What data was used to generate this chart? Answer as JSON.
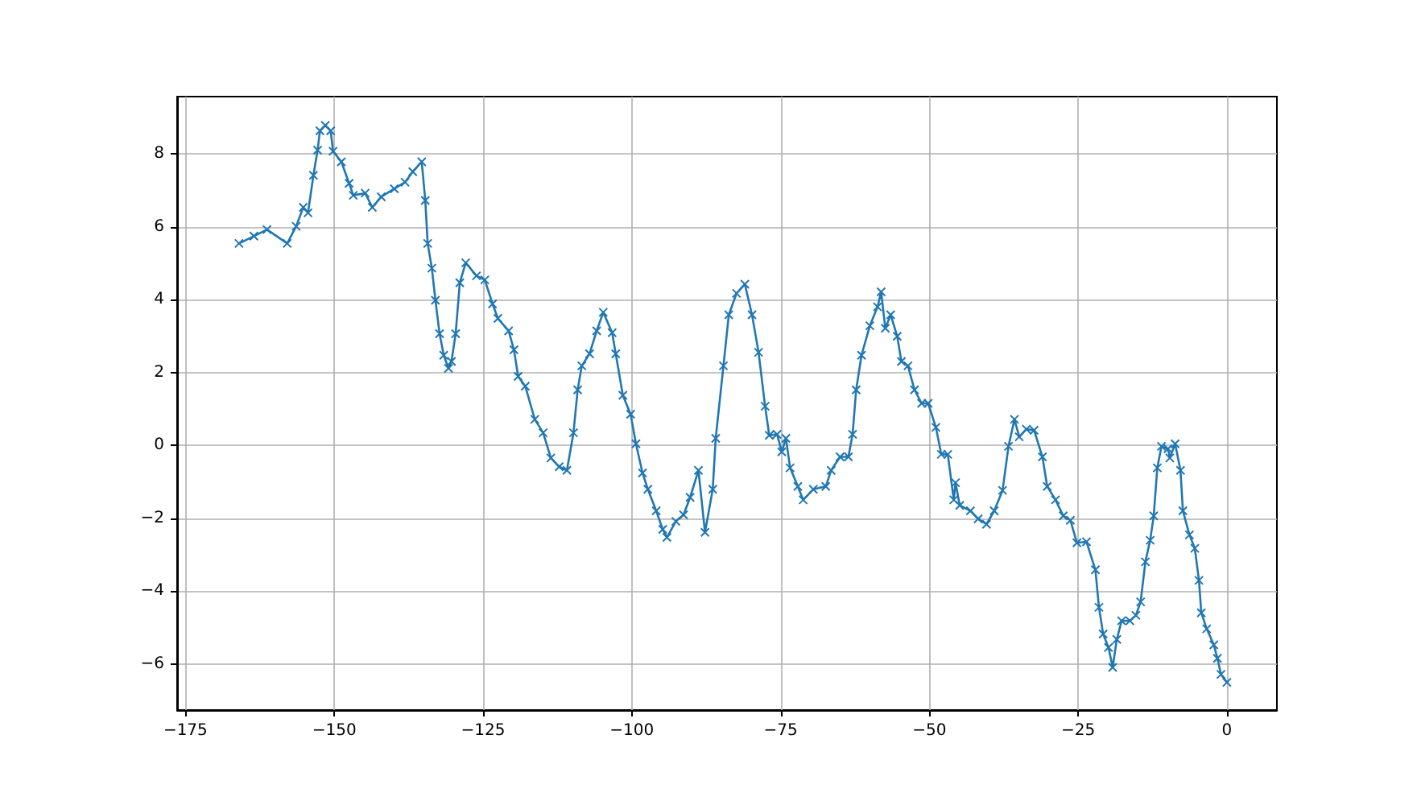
{
  "chart_data": {
    "type": "line",
    "marker": "cross",
    "line_style": "solid",
    "grid": true,
    "xlim": [
      -176.4,
      8.4
    ],
    "ylim": [
      -7.27,
      9.57
    ],
    "xticks": [
      -175,
      -150,
      -125,
      -100,
      -75,
      -50,
      -25,
      0
    ],
    "yticks": [
      -6,
      -4,
      -2,
      0,
      2,
      4,
      6,
      8
    ],
    "series": [
      {
        "color": "#1f77b4",
        "x": [
          -166.0,
          -163.5,
          -161.3,
          -157.9,
          -156.4,
          -155.2,
          -154.4,
          -153.5,
          -152.8,
          -152.4,
          -151.5,
          -150.6,
          -150.2,
          -148.8,
          -147.5,
          -146.8,
          -144.8,
          -143.6,
          -142.1,
          -139.9,
          -138.1,
          -136.8,
          -135.3,
          -134.7,
          -134.3,
          -133.6,
          -133.0,
          -132.3,
          -131.6,
          -130.8,
          -130.3,
          -129.6,
          -128.9,
          -127.9,
          -126.1,
          -124.7,
          -123.4,
          -122.5,
          -120.7,
          -119.8,
          -119.1,
          -117.9,
          -116.3,
          -114.9,
          -113.6,
          -112.2,
          -110.9,
          -109.8,
          -109.1,
          -108.4,
          -107.1,
          -105.9,
          -104.8,
          -103.3,
          -102.7,
          -101.5,
          -100.2,
          -99.3,
          -98.2,
          -97.3,
          -95.9,
          -94.8,
          -94.1,
          -92.6,
          -91.3,
          -90.2,
          -88.8,
          -87.7,
          -86.4,
          -85.9,
          -84.6,
          -83.7,
          -82.4,
          -81.0,
          -79.8,
          -78.7,
          -77.6,
          -76.9,
          -75.6,
          -74.8,
          -74.1,
          -73.4,
          -72.1,
          -71.2,
          -69.5,
          -67.4,
          -66.5,
          -65.0,
          -63.6,
          -62.9,
          -62.3,
          -61.4,
          -60.0,
          -58.7,
          -58.1,
          -57.4,
          -56.5,
          -55.4,
          -54.7,
          -53.6,
          -52.5,
          -51.3,
          -50.2,
          -48.9,
          -48.0,
          -46.9,
          -45.9,
          -45.6,
          -44.9,
          -43.1,
          -41.8,
          -40.4,
          -39.1,
          -37.7,
          -36.7,
          -35.7,
          -34.9,
          -33.7,
          -32.4,
          -31.0,
          -30.2,
          -28.8,
          -27.5,
          -26.3,
          -25.2,
          -23.6,
          -22.1,
          -21.5,
          -20.8,
          -19.9,
          -19.2,
          -18.5,
          -17.7,
          -16.3,
          -15.3,
          -14.5,
          -13.7,
          -12.9,
          -12.3,
          -11.7,
          -11.0,
          -9.9,
          -9.6,
          -8.7,
          -7.8,
          -7.4,
          -6.3,
          -5.4,
          -4.7,
          -4.3,
          -3.4,
          -2.2,
          -1.6,
          -1.0,
          0.0
        ],
        "values": [
          5.54,
          5.74,
          5.92,
          5.54,
          6.01,
          6.53,
          6.38,
          7.41,
          8.1,
          8.63,
          8.78,
          8.63,
          8.07,
          7.78,
          7.19,
          6.86,
          6.92,
          6.53,
          6.82,
          7.04,
          7.22,
          7.51,
          7.78,
          6.72,
          5.54,
          4.86,
          3.98,
          3.06,
          2.47,
          2.11,
          2.3,
          3.06,
          4.46,
          5.01,
          4.65,
          4.54,
          3.88,
          3.48,
          3.14,
          2.62,
          1.89,
          1.62,
          0.71,
          0.34,
          -0.35,
          -0.59,
          -0.69,
          0.34,
          1.52,
          2.18,
          2.51,
          3.14,
          3.65,
          3.09,
          2.51,
          1.37,
          0.85,
          0.04,
          -0.76,
          -1.21,
          -1.8,
          -2.31,
          -2.53,
          -2.09,
          -1.91,
          -1.43,
          -0.69,
          -2.39,
          -1.21,
          0.19,
          2.18,
          3.58,
          4.17,
          4.42,
          3.58,
          2.55,
          1.07,
          0.27,
          0.3,
          -0.18,
          0.19,
          -0.62,
          -1.13,
          -1.5,
          -1.21,
          -1.13,
          -0.69,
          -0.32,
          -0.32,
          0.3,
          1.52,
          2.47,
          3.28,
          3.8,
          4.21,
          3.21,
          3.58,
          2.99,
          2.3,
          2.18,
          1.52,
          1.15,
          1.15,
          0.49,
          -0.25,
          -0.25,
          -1.5,
          -1.03,
          -1.65,
          -1.8,
          -2.02,
          -2.17,
          -1.8,
          -1.24,
          -0.03,
          0.71,
          0.23,
          0.44,
          0.41,
          -0.32,
          -1.13,
          -1.5,
          -1.94,
          -2.06,
          -2.68,
          -2.65,
          -3.42,
          -4.45,
          -5.18,
          -5.55,
          -6.1,
          -5.33,
          -4.82,
          -4.82,
          -4.67,
          -4.3,
          -3.2,
          -2.61,
          -1.94,
          -0.62,
          -0.03,
          -0.1,
          -0.35,
          0.04,
          -0.69,
          -1.8,
          -2.46,
          -2.83,
          -3.71,
          -4.6,
          -5.04,
          -5.48,
          -5.85,
          -6.29,
          -6.51
        ]
      }
    ]
  }
}
